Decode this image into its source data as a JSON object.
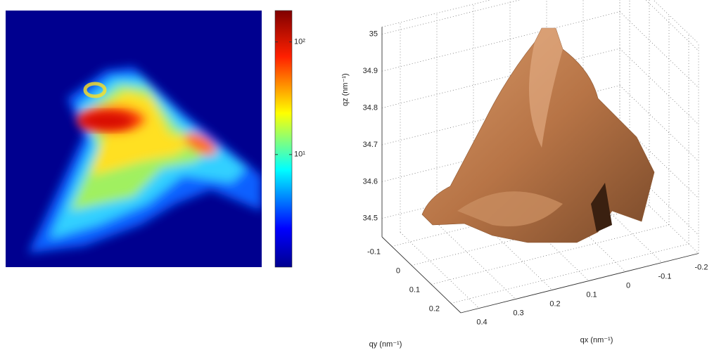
{
  "chart_data": [
    {
      "type": "heatmap",
      "log_scale": true,
      "clim": [
        1,
        190
      ],
      "colorbar_ticks": [
        {
          "value": 100,
          "label": "10²"
        },
        {
          "value": 10,
          "label": "10¹"
        }
      ]
    },
    {
      "type": "surface3d",
      "color": "#b87a50",
      "xlabel": "qx (nm⁻¹)",
      "ylabel": "qy (nm⁻¹)",
      "zlabel": "qz (nm⁻¹)",
      "xlim": [
        -0.2,
        0.45
      ],
      "ylim": [
        -0.15,
        0.25
      ],
      "zlim": [
        34.45,
        35.02
      ],
      "xticks": [
        0.4,
        0.3,
        0.2,
        0.1,
        0,
        -0.1,
        -0.2
      ],
      "yticks": [
        -0.1,
        0,
        0.1,
        0.2
      ],
      "zticks": [
        34.5,
        34.6,
        34.7,
        34.8,
        34.9,
        35
      ],
      "grid": true
    }
  ]
}
